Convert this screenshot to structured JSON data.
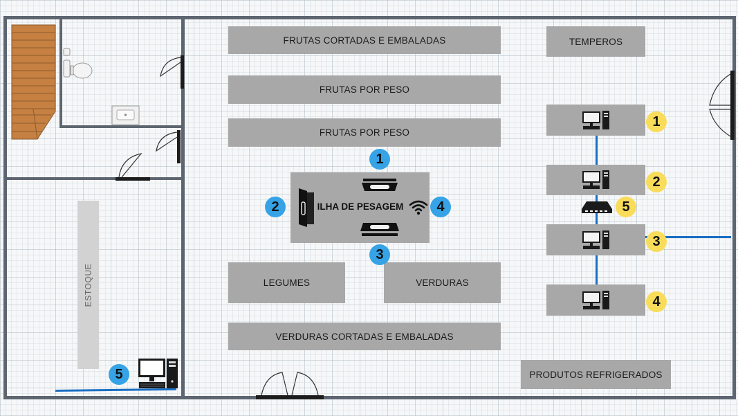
{
  "floor_plan": {
    "shelves": {
      "frutas_cortadas": "FRUTAS CORTADAS E EMBALADAS",
      "frutas_peso_1": "FRUTAS POR PESO",
      "frutas_peso_2": "FRUTAS POR PESO",
      "legumes": "LEGUMES",
      "verduras": "VERDURAS",
      "verduras_cortadas": "VERDURAS CORTADAS E EMBALADAS",
      "temperos": "TEMPEROS",
      "produtos_refrigerados": "PRODUTOS REFRIGERADOS"
    },
    "storage_label": "ESTOQUE",
    "weighing_island": {
      "label": "ILHA DE PESAGEM",
      "markers": [
        "1",
        "2",
        "3",
        "4"
      ]
    },
    "network": {
      "computers": [
        "1",
        "2",
        "3",
        "4"
      ],
      "switch_marker": "5",
      "storage_computer_marker": "5"
    },
    "colors": {
      "wall": "#5d6670",
      "shelf": "#a8a8a8",
      "cable": "#1a6fc4",
      "marker_blue": "#36a3e6",
      "marker_yellow": "#f8dc5a"
    }
  }
}
